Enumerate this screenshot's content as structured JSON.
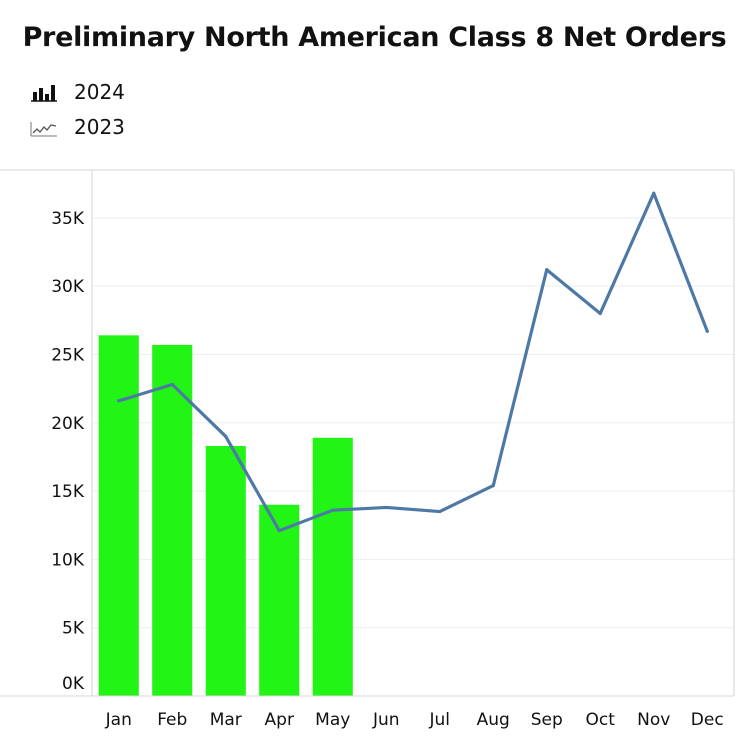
{
  "chart_data": {
    "type": "bar",
    "title": "Preliminary North American Class 8 Net Orders",
    "categories": [
      "Jan",
      "Feb",
      "Mar",
      "Apr",
      "May",
      "Jun",
      "Jul",
      "Aug",
      "Sep",
      "Oct",
      "Nov",
      "Dec"
    ],
    "series": [
      {
        "name": "2024",
        "type": "bar",
        "color": "#22f516",
        "values": [
          26400,
          25700,
          18300,
          14000,
          18900,
          null,
          null,
          null,
          null,
          null,
          null,
          null
        ]
      },
      {
        "name": "2023",
        "type": "line",
        "color": "#4e79a7",
        "values": [
          21600,
          22800,
          19000,
          12100,
          13600,
          13800,
          13500,
          15400,
          31200,
          28000,
          36800,
          26700
        ]
      }
    ],
    "y_ticks": [
      "0K",
      "5K",
      "10K",
      "15K",
      "20K",
      "25K",
      "30K",
      "35K"
    ],
    "ylim": [
      0,
      38500
    ],
    "grid": true,
    "legend_position": "top-left"
  },
  "legend": {
    "bar_icon": "bar-chart-icon",
    "line_icon": "line-chart-icon"
  }
}
